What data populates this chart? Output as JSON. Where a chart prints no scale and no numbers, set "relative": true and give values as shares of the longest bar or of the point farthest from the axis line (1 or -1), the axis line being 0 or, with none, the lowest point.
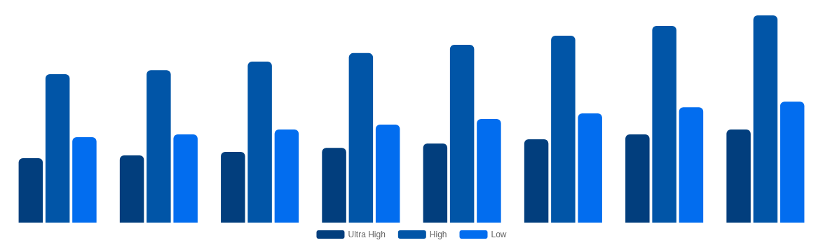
{
  "chart_data": {
    "type": "bar",
    "relative": true,
    "legend": "bottom",
    "categories": [
      null,
      null,
      null,
      null,
      null,
      null,
      null,
      null
    ],
    "series": [
      {
        "name": "Ultra High",
        "color": "#023e7d",
        "values": [
          0.311,
          0.324,
          0.341,
          0.361,
          0.382,
          0.402,
          0.426,
          0.449
        ]
      },
      {
        "name": "High",
        "color": "#0155a7",
        "values": [
          0.716,
          0.736,
          0.777,
          0.818,
          0.858,
          0.902,
          0.949,
          1
        ]
      },
      {
        "name": "Low",
        "color": "#026def",
        "values": [
          0.412,
          0.426,
          0.449,
          0.473,
          0.5,
          0.527,
          0.557,
          0.584
        ]
      }
    ]
  }
}
